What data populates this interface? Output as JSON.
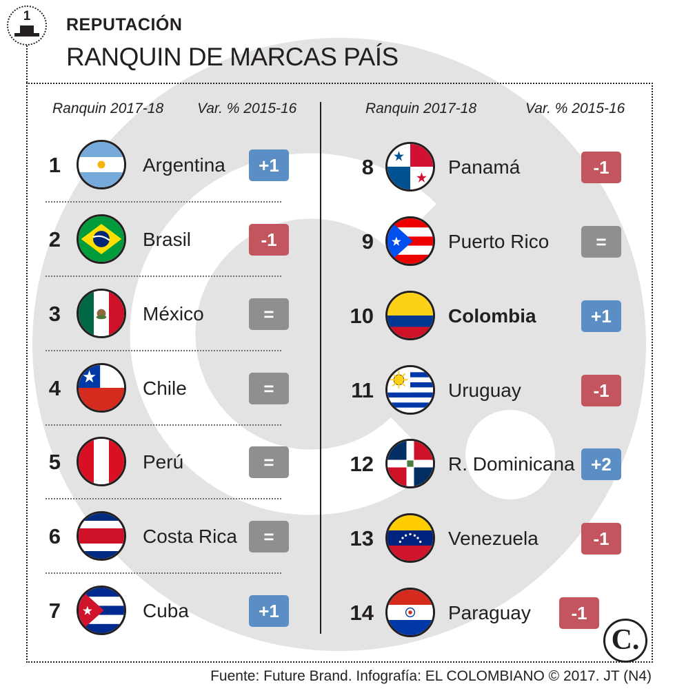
{
  "header": {
    "podium_number": "1",
    "kicker": "REPUTACIÓN",
    "title": "RANQUIN DE MARCAS PAÍS"
  },
  "columns": {
    "left": {
      "rank_header": "Ranquin 2017-18",
      "var_header": "Var. % 2015-16"
    },
    "right": {
      "rank_header": "Ranquin 2017-18",
      "var_header": "Var. % 2015-16"
    }
  },
  "colors": {
    "up": "#5b8ec4",
    "down": "#c2555e",
    "equal": "#8f8f8f",
    "text": "#231f20"
  },
  "rows": [
    {
      "rank": "1",
      "country": "Argentina",
      "variation": "+1",
      "status": "up",
      "flag": "argentina-flag-icon"
    },
    {
      "rank": "2",
      "country": "Brasil",
      "variation": "-1",
      "status": "down",
      "flag": "brazil-flag-icon"
    },
    {
      "rank": "3",
      "country": "México",
      "variation": "=",
      "status": "equal",
      "flag": "mexico-flag-icon"
    },
    {
      "rank": "4",
      "country": "Chile",
      "variation": "=",
      "status": "equal",
      "flag": "chile-flag-icon"
    },
    {
      "rank": "5",
      "country": "Perú",
      "variation": "=",
      "status": "equal",
      "flag": "peru-flag-icon"
    },
    {
      "rank": "6",
      "country": "Costa Rica",
      "variation": "=",
      "status": "equal",
      "flag": "costa-rica-flag-icon"
    },
    {
      "rank": "7",
      "country": "Cuba",
      "variation": "+1",
      "status": "up",
      "flag": "cuba-flag-icon"
    },
    {
      "rank": "8",
      "country": "Panamá",
      "variation": "-1",
      "status": "down",
      "flag": "panama-flag-icon"
    },
    {
      "rank": "9",
      "country": "Puerto Rico",
      "variation": "=",
      "status": "equal",
      "flag": "puerto-rico-flag-icon"
    },
    {
      "rank": "10",
      "country": "Colombia",
      "variation": "+1",
      "status": "up",
      "flag": "colombia-flag-icon",
      "highlight": true
    },
    {
      "rank": "11",
      "country": "Uruguay",
      "variation": "-1",
      "status": "down",
      "flag": "uruguay-flag-icon"
    },
    {
      "rank": "12",
      "country": "R. Dominicana",
      "variation": "+2",
      "status": "up",
      "flag": "dominican-republic-flag-icon"
    },
    {
      "rank": "13",
      "country": "Venezuela",
      "variation": "-1",
      "status": "down",
      "flag": "venezuela-flag-icon"
    },
    {
      "rank": "14",
      "country": "Paraguay",
      "variation": "-1",
      "status": "down",
      "flag": "paraguay-flag-icon"
    }
  ],
  "logo": {
    "letter": "C.",
    "icon": "el-colombiano-logo-icon"
  },
  "source": "Fuente: Future Brand. Infografía: EL COLOMBIANO © 2017. JT (N4)"
}
